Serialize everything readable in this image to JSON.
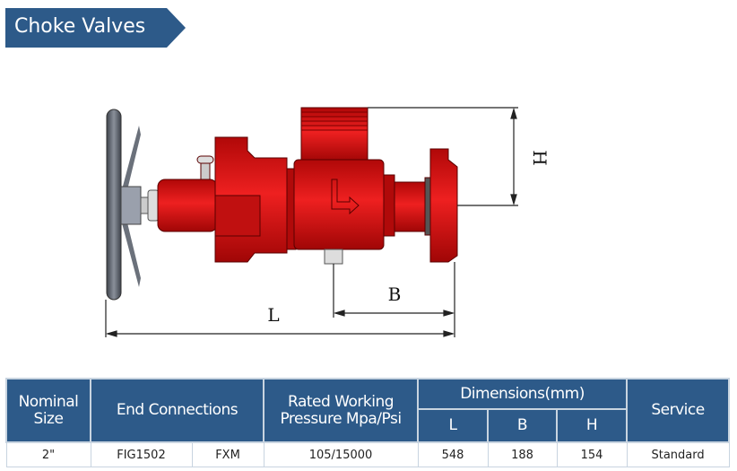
{
  "title": "Choke Valves",
  "colors": {
    "banner": "#2d5a89",
    "header": "#2d5a89",
    "valve": "#d41010",
    "handwheel": "#5d6470"
  },
  "drawing": {
    "dimension_labels": {
      "L": "L",
      "B": "B",
      "H": "H"
    }
  },
  "table": {
    "headers": {
      "nominal_size": "Nominal Size",
      "end_connections": "End Connections",
      "pressure": "Rated Working Pressure Mpa/Psi",
      "dimensions": "Dimensions(mm)",
      "L": "L",
      "B": "B",
      "H": "H",
      "service": "Service"
    },
    "row": {
      "size": "2\"",
      "end_conn_1": "FIG1502",
      "end_conn_2": "FXM",
      "pressure": "105/15000",
      "L": "548",
      "B": "188",
      "H": "154",
      "service": "Standard"
    }
  }
}
